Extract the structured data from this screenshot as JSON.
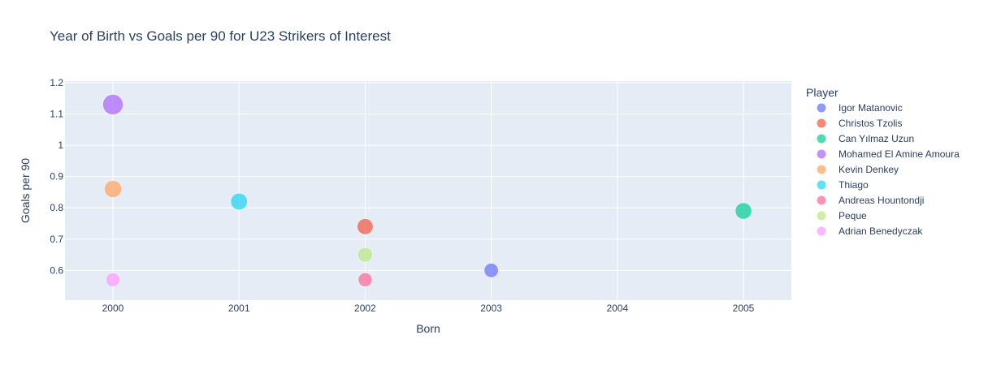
{
  "chart_data": {
    "type": "scatter",
    "title": "Year of Birth vs Goals per 90 for U23 Strikers of Interest",
    "xlabel": "Born",
    "ylabel": "Goals per 90",
    "legend_title": "Player",
    "legend_position": "right",
    "grid": true,
    "plot_bg": "#e5ecf6",
    "xlim": [
      1999.62,
      2005.38
    ],
    "ylim": [
      0.505,
      1.205
    ],
    "x_ticks": [
      "2000",
      "2001",
      "2002",
      "2003",
      "2004",
      "2005"
    ],
    "y_ticks": [
      "0.6",
      "0.7",
      "0.8",
      "0.9",
      "1",
      "1.1",
      "1.2"
    ],
    "series": [
      {
        "name": "Igor Matanovic",
        "color": "#636efa",
        "x": 2003,
        "y": 0.6
      },
      {
        "name": "Christos Tzolis",
        "color": "#ef553b",
        "x": 2002,
        "y": 0.74
      },
      {
        "name": "Can Yılmaz Uzun",
        "color": "#00cc96",
        "x": 2005,
        "y": 0.79
      },
      {
        "name": "Mohamed El Amine Amoura",
        "color": "#ab63fa",
        "x": 2000,
        "y": 1.13
      },
      {
        "name": "Kevin Denkey",
        "color": "#ffa15a",
        "x": 2000,
        "y": 0.86
      },
      {
        "name": "Thiago",
        "color": "#19d3f3",
        "x": 2001,
        "y": 0.82
      },
      {
        "name": "Andreas Hountondji",
        "color": "#ff6692",
        "x": 2002,
        "y": 0.57
      },
      {
        "name": "Peque",
        "color": "#b6e880",
        "x": 2002,
        "y": 0.65
      },
      {
        "name": "Adrian Benedyczak",
        "color": "#ff97ff",
        "x": 2000,
        "y": 0.57
      }
    ]
  }
}
